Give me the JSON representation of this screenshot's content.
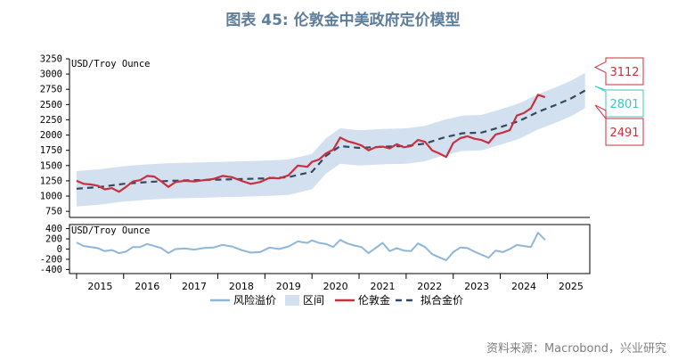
{
  "title": "图表 45: 伦敦金中美政府定价模型",
  "source": "资料来源：Macrobond，兴业研究",
  "colors": {
    "gold": "#c9303e",
    "fit": "#34495e",
    "band": "#d3e0f0",
    "risk": "#8fb6d9",
    "axis": "#000000",
    "callout_upper": "#c9303e",
    "callout_mid": "#3cc7c0",
    "callout_lower": "#c9303e"
  },
  "chart_data": [
    {
      "type": "line",
      "panel": "top",
      "unit_label": "USD/Troy Ounce",
      "ylim": [
        650,
        3250
      ],
      "yticks": [
        750,
        1000,
        1250,
        1500,
        1750,
        2000,
        2250,
        2500,
        2750,
        3000,
        3250
      ],
      "xlim": [
        2014.85,
        2025.9
      ],
      "x_categories": [
        "2015",
        "2016",
        "2017",
        "2018",
        "2019",
        "2020",
        "2021",
        "2022",
        "2023",
        "2024",
        "2025"
      ],
      "series": [
        {
          "name": "伦敦金",
          "kind": "line",
          "x": [
            2015.0,
            2015.15,
            2015.3,
            2015.45,
            2015.6,
            2015.75,
            2015.9,
            2016.05,
            2016.2,
            2016.35,
            2016.5,
            2016.65,
            2016.8,
            2016.95,
            2017.1,
            2017.3,
            2017.5,
            2017.7,
            2017.9,
            2018.1,
            2018.3,
            2018.5,
            2018.7,
            2018.9,
            2019.1,
            2019.3,
            2019.5,
            2019.7,
            2019.9,
            2020.0,
            2020.15,
            2020.3,
            2020.45,
            2020.6,
            2020.75,
            2020.9,
            2021.05,
            2021.2,
            2021.35,
            2021.5,
            2021.65,
            2021.8,
            2021.95,
            2022.1,
            2022.25,
            2022.4,
            2022.55,
            2022.7,
            2022.85,
            2023.0,
            2023.15,
            2023.3,
            2023.45,
            2023.6,
            2023.75,
            2023.9,
            2024.05,
            2024.2,
            2024.35,
            2024.5,
            2024.65,
            2024.8,
            2024.95
          ],
          "values": [
            1250,
            1200,
            1190,
            1170,
            1110,
            1130,
            1070,
            1150,
            1240,
            1260,
            1330,
            1320,
            1240,
            1150,
            1230,
            1250,
            1240,
            1260,
            1280,
            1330,
            1310,
            1250,
            1200,
            1230,
            1300,
            1290,
            1340,
            1500,
            1480,
            1560,
            1600,
            1700,
            1760,
            1960,
            1900,
            1870,
            1830,
            1750,
            1800,
            1810,
            1780,
            1850,
            1800,
            1820,
            1920,
            1890,
            1750,
            1700,
            1640,
            1870,
            1950,
            1980,
            1940,
            1920,
            1870,
            2010,
            2040,
            2080,
            2320,
            2360,
            2440,
            2660,
            2620
          ]
        },
        {
          "name": "拟合金价",
          "kind": "dashed",
          "x": [
            2015.0,
            2015.5,
            2016.0,
            2016.5,
            2017.0,
            2017.5,
            2018.0,
            2018.5,
            2019.0,
            2019.5,
            2020.0,
            2020.3,
            2020.6,
            2021.0,
            2021.5,
            2022.0,
            2022.4,
            2022.8,
            2023.2,
            2023.6,
            2024.0,
            2024.4,
            2024.8,
            2025.2,
            2025.5,
            2025.8
          ],
          "values": [
            1120,
            1150,
            1200,
            1230,
            1250,
            1260,
            1270,
            1280,
            1290,
            1310,
            1400,
            1660,
            1820,
            1790,
            1810,
            1820,
            1860,
            1960,
            2030,
            2040,
            2130,
            2230,
            2380,
            2500,
            2600,
            2730
          ]
        },
        {
          "name": "区间",
          "kind": "band",
          "x": [
            2015.0,
            2015.5,
            2016.0,
            2016.5,
            2017.0,
            2017.5,
            2018.0,
            2018.5,
            2019.0,
            2019.5,
            2020.0,
            2020.3,
            2020.6,
            2021.0,
            2021.5,
            2022.0,
            2022.4,
            2022.8,
            2023.2,
            2023.6,
            2024.0,
            2024.4,
            2024.8,
            2025.2,
            2025.5,
            2025.8
          ],
          "upper": [
            1410,
            1440,
            1490,
            1520,
            1540,
            1550,
            1560,
            1570,
            1580,
            1600,
            1690,
            1950,
            2110,
            2080,
            2100,
            2110,
            2150,
            2250,
            2320,
            2330,
            2420,
            2520,
            2670,
            2790,
            2890,
            3020
          ],
          "lower": [
            830,
            860,
            910,
            940,
            960,
            970,
            980,
            990,
            1000,
            1020,
            1110,
            1370,
            1530,
            1500,
            1520,
            1530,
            1570,
            1670,
            1740,
            1750,
            1840,
            1940,
            2090,
            2210,
            2310,
            2440
          ]
        }
      ],
      "annotations": [
        {
          "label": "3112",
          "value": 3112,
          "style": "upper"
        },
        {
          "label": "2801",
          "value": 2801,
          "style": "mid"
        },
        {
          "label": "2491",
          "value": 2491,
          "style": "lower"
        }
      ]
    },
    {
      "type": "line",
      "panel": "bottom",
      "unit_label": "USD/Troy Ounce",
      "ylim": [
        -480,
        480
      ],
      "yticks": [
        -400,
        -200,
        0,
        200,
        400
      ],
      "series": [
        {
          "name": "风险溢价",
          "x": [
            2015.0,
            2015.15,
            2015.3,
            2015.45,
            2015.6,
            2015.75,
            2015.9,
            2016.05,
            2016.2,
            2016.35,
            2016.5,
            2016.65,
            2016.8,
            2016.95,
            2017.1,
            2017.3,
            2017.5,
            2017.7,
            2017.9,
            2018.1,
            2018.3,
            2018.5,
            2018.7,
            2018.9,
            2019.1,
            2019.3,
            2019.5,
            2019.7,
            2019.9,
            2020.0,
            2020.15,
            2020.3,
            2020.45,
            2020.6,
            2020.75,
            2020.9,
            2021.05,
            2021.2,
            2021.35,
            2021.5,
            2021.65,
            2021.8,
            2021.95,
            2022.1,
            2022.25,
            2022.4,
            2022.55,
            2022.7,
            2022.85,
            2023.0,
            2023.15,
            2023.3,
            2023.45,
            2023.6,
            2023.75,
            2023.9,
            2024.05,
            2024.2,
            2024.35,
            2024.5,
            2024.65,
            2024.8,
            2024.95
          ],
          "values": [
            130,
            60,
            40,
            20,
            -40,
            -20,
            -80,
            -50,
            40,
            40,
            100,
            60,
            20,
            -80,
            0,
            10,
            -10,
            20,
            30,
            80,
            50,
            -20,
            -70,
            -60,
            30,
            0,
            50,
            150,
            120,
            170,
            120,
            100,
            40,
            180,
            110,
            70,
            40,
            -80,
            20,
            120,
            -40,
            20,
            -30,
            -40,
            110,
            40,
            -100,
            -160,
            -220,
            -60,
            30,
            20,
            -50,
            -110,
            -170,
            -30,
            -60,
            0,
            80,
            60,
            40,
            320,
            180
          ]
        }
      ]
    }
  ],
  "legend": [
    {
      "label": "风险溢价",
      "kind": "line"
    },
    {
      "label": "区间",
      "kind": "band"
    },
    {
      "label": "伦敦金",
      "kind": "line"
    },
    {
      "label": "拟合金价",
      "kind": "dashed"
    }
  ]
}
